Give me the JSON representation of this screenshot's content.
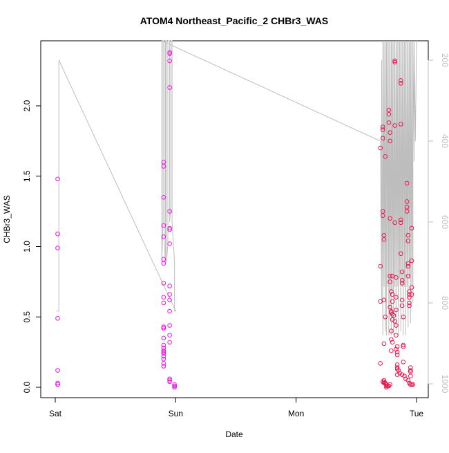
{
  "chart_data": {
    "type": "scatter",
    "title": "ATOM4 Northeast_Pacific_2 CHBr3_WAS",
    "xlabel": "Date",
    "ylabel": "CHBr3_WAS",
    "x_unit": "days",
    "x_range": [
      0.0,
      3.0
    ],
    "x_ticks": [
      {
        "value": 0.0,
        "label": "Sat"
      },
      {
        "value": 1.0,
        "label": "Sun"
      },
      {
        "value": 2.0,
        "label": "Mon"
      },
      {
        "value": 3.0,
        "label": "Tue"
      }
    ],
    "y_range": [
      0.0,
      2.45
    ],
    "y_ticks": [
      0.0,
      0.5,
      1.0,
      1.5,
      2.0
    ],
    "y2_axis": {
      "reversed": true,
      "range": [
        1000,
        150
      ],
      "ticks": [
        200,
        400,
        600,
        800,
        1000
      ]
    },
    "grid": false,
    "colors": {
      "marker_magenta": "#e815e0",
      "marker_pink": "#e8184c",
      "line": "#bdbdbd",
      "axis": "#000000",
      "right_axis": "#bdbdbd"
    },
    "series": [
      {
        "marker": "open-circle",
        "color": "#e815e0",
        "x": [
          0.02,
          0.02,
          0.02,
          0.02,
          0.02,
          0.02,
          0.02,
          0.02,
          0.9,
          0.9,
          0.9,
          0.9,
          0.9,
          0.9,
          0.9,
          0.9,
          0.9,
          0.9,
          0.9,
          0.9,
          0.9,
          0.9,
          0.9,
          0.9,
          0.9,
          0.9,
          0.9,
          0.9,
          0.9,
          0.9,
          0.9,
          0.95,
          0.95,
          0.95,
          0.95,
          0.95,
          0.95,
          0.95,
          0.95,
          0.95,
          0.95,
          0.95,
          0.95,
          0.95,
          0.95,
          0.95,
          0.95,
          0.95,
          0.95,
          0.99,
          0.99,
          0.99,
          0.99
        ],
        "y": [
          1.48,
          1.09,
          0.99,
          0.49,
          0.12,
          0.03,
          0.02,
          0.02,
          1.6,
          1.57,
          1.35,
          1.15,
          1.07,
          0.91,
          0.88,
          0.74,
          0.64,
          0.6,
          0.43,
          0.42,
          0.42,
          0.35,
          0.3,
          0.28,
          0.26,
          0.25,
          0.24,
          0.22,
          0.2,
          0.17,
          0.15,
          2.38,
          2.37,
          2.32,
          2.13,
          1.25,
          1.13,
          1.12,
          1.02,
          0.72,
          0.66,
          0.62,
          0.54,
          0.44,
          0.37,
          0.32,
          0.06,
          0.05,
          0.04,
          0.02,
          0.01,
          0.01,
          0.0
        ]
      },
      {
        "marker": "open-circle",
        "color": "#e8184c",
        "x": [
          2.7,
          2.7,
          2.7,
          2.7,
          2.72,
          2.72,
          2.72,
          2.72,
          2.72,
          2.73,
          2.73,
          2.73,
          2.73,
          2.73,
          2.73,
          2.74,
          2.74,
          2.75,
          2.75,
          2.75,
          2.77,
          2.77,
          2.77,
          2.78,
          2.78,
          2.78,
          2.78,
          2.78,
          2.78,
          2.79,
          2.79,
          2.79,
          2.79,
          2.79,
          2.8,
          2.8,
          2.8,
          2.8,
          2.8,
          2.82,
          2.82,
          2.82,
          2.82,
          2.83,
          2.83,
          2.83,
          2.83,
          2.83,
          2.84,
          2.84,
          2.84,
          2.84,
          2.84,
          2.84,
          2.87,
          2.87,
          2.87,
          2.87,
          2.87,
          2.87,
          2.88,
          2.88,
          2.88,
          2.88,
          2.88,
          2.89,
          2.89,
          2.89,
          2.89,
          2.92,
          2.92,
          2.92,
          2.92,
          2.93,
          2.93,
          2.93,
          2.93,
          2.93,
          2.94,
          2.94,
          2.94,
          2.94,
          2.94,
          2.95,
          2.95,
          2.95,
          2.95,
          2.95,
          2.96,
          2.96,
          2.96,
          2.96,
          2.72,
          2.73,
          2.74,
          2.75,
          2.76,
          2.77,
          2.78,
          2.79,
          2.8,
          2.81,
          2.82,
          2.83,
          2.84,
          2.85,
          2.86,
          2.88,
          2.9,
          2.91,
          2.93,
          2.94,
          2.95,
          2.96,
          2.97
        ],
        "y": [
          1.7,
          0.86,
          0.61,
          0.17,
          1.85,
          1.83,
          1.77,
          1.25,
          1.22,
          1.08,
          1.05,
          0.62,
          0.31,
          0.05,
          0.04,
          1.64,
          0.5,
          0.02,
          0.01,
          0.0,
          1.97,
          1.94,
          1.88,
          1.81,
          1.75,
          1.2,
          0.79,
          0.75,
          0.57,
          0.68,
          0.53,
          0.4,
          0.34,
          0.26,
          0.79,
          0.66,
          0.61,
          0.48,
          0.32,
          2.32,
          2.31,
          1.86,
          1.17,
          0.78,
          0.64,
          0.55,
          0.44,
          0.37,
          0.29,
          0.25,
          0.16,
          0.14,
          0.13,
          0.09,
          2.18,
          2.16,
          1.87,
          1.19,
          1.17,
          0.95,
          0.82,
          0.76,
          0.74,
          0.62,
          0.58,
          0.5,
          0.3,
          0.29,
          0.18,
          1.45,
          1.32,
          1.28,
          1.25,
          1.08,
          1.04,
          0.88,
          0.86,
          0.79,
          0.68,
          0.66,
          0.64,
          0.6,
          0.58,
          0.14,
          0.12,
          0.11,
          0.08,
          0.02,
          1.13,
          0.9,
          0.71,
          0.66,
          0.04,
          0.03,
          0.03,
          0.02,
          0.01,
          0.01,
          0.02,
          0.54,
          0.52,
          0.51,
          0.47,
          0.27,
          0.23,
          0.12,
          0.1,
          0.09,
          0.08,
          0.06,
          0.05,
          0.03,
          0.02,
          0.02,
          0.02
        ]
      }
    ],
    "line": {
      "axis": "right",
      "color": "#bdbdbd",
      "x": [
        0.01,
        0.03,
        0.03,
        1.0,
        0.99,
        0.99,
        0.97,
        0.97,
        0.96,
        0.96,
        0.95,
        0.95,
        0.935,
        0.935,
        0.925,
        0.925,
        0.915,
        0.915,
        0.905,
        0.905,
        0.895,
        0.895,
        0.885,
        0.885,
        2.7,
        2.71,
        2.71,
        2.72,
        2.72,
        2.73,
        2.73,
        2.74,
        2.74,
        2.75,
        2.75,
        2.76,
        2.76,
        2.77,
        2.77,
        2.78,
        2.78,
        2.79,
        2.79,
        2.8,
        2.8,
        2.81,
        2.81,
        2.82,
        2.82,
        2.83,
        2.83,
        2.84,
        2.84,
        2.85,
        2.85,
        2.86,
        2.86,
        2.87,
        2.87,
        2.88,
        2.88,
        2.89,
        2.89,
        2.9,
        2.9,
        2.91,
        2.91,
        2.92,
        2.92,
        2.93,
        2.93,
        2.94,
        2.94,
        2.95,
        2.95,
        2.96,
        2.96,
        2.97,
        2.97,
        2.98,
        2.98,
        2.99,
        3.0
      ],
      "y": [
        820,
        820,
        200,
        820,
        820,
        700,
        600,
        150,
        150,
        550,
        600,
        150,
        150,
        650,
        700,
        150,
        150,
        700,
        650,
        150,
        150,
        600,
        700,
        150,
        400,
        800,
        200,
        880,
        150,
        760,
        150,
        870,
        150,
        880,
        150,
        760,
        150,
        880,
        150,
        840,
        150,
        880,
        150,
        770,
        150,
        880,
        150,
        760,
        150,
        870,
        150,
        760,
        150,
        880,
        150,
        740,
        150,
        870,
        150,
        760,
        150,
        880,
        150,
        760,
        150,
        880,
        150,
        760,
        150,
        860,
        150,
        740,
        150,
        850,
        150,
        760,
        150,
        800,
        150,
        450,
        150,
        400,
        150
      ]
    }
  }
}
